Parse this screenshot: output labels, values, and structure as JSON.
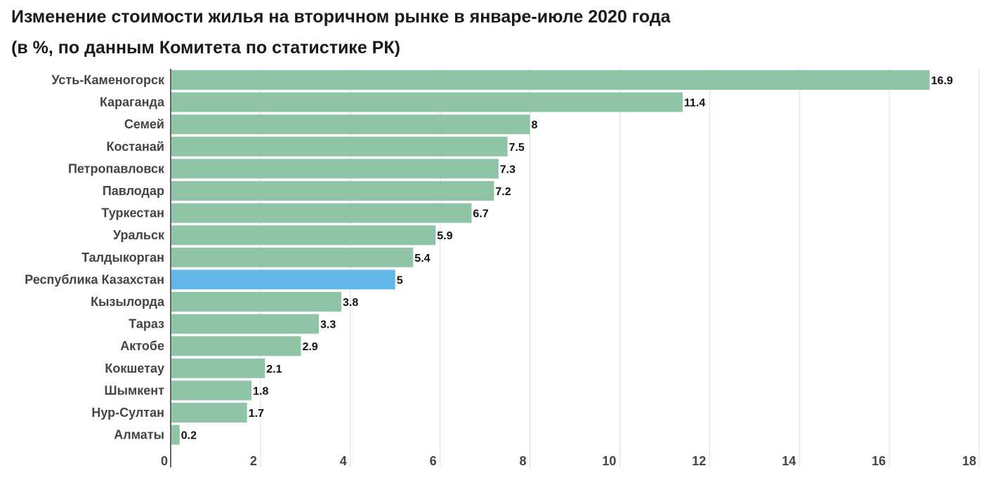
{
  "chart_data": {
    "type": "bar",
    "orientation": "horizontal",
    "title": "Изменение стоимости жилья на вторичном рынке в январе-июле 2020 года",
    "subtitle": "(в %, по данным Комитета по статистике РК)",
    "xlabel": "",
    "ylabel": "",
    "xlim": [
      0,
      18
    ],
    "xticks": [
      "0",
      "2",
      "4",
      "6",
      "8",
      "10",
      "12",
      "14",
      "16",
      "18"
    ],
    "grid": true,
    "categories": [
      "Усть-Каменогорск",
      "Караганда",
      "Семей",
      "Костанай",
      "Петропавловск",
      "Павлодар",
      "Туркестан",
      "Уральск",
      "Талдыкорган",
      "Республика Казахстан",
      "Кызылорда",
      "Тараз",
      "Актобе",
      "Кокшетау",
      "Шымкент",
      "Нур-Султан",
      "Алматы"
    ],
    "values": [
      16.9,
      11.4,
      8,
      7.5,
      7.3,
      7.2,
      6.7,
      5.9,
      5.4,
      5,
      3.8,
      3.3,
      2.9,
      2.1,
      1.8,
      1.7,
      0.2
    ],
    "value_labels": [
      "16.9",
      "11.4",
      "8",
      "7.5",
      "7.3",
      "7.2",
      "6.7",
      "5.9",
      "5.4",
      "5",
      "3.8",
      "3.3",
      "2.9",
      "2.1",
      "1.8",
      "1.7",
      "0.2"
    ],
    "highlight_index": 9,
    "colors": {
      "bar": "#8fc4a6",
      "highlight": "#62b7e6",
      "grid": "#dddddd",
      "axis": "#333333"
    }
  }
}
